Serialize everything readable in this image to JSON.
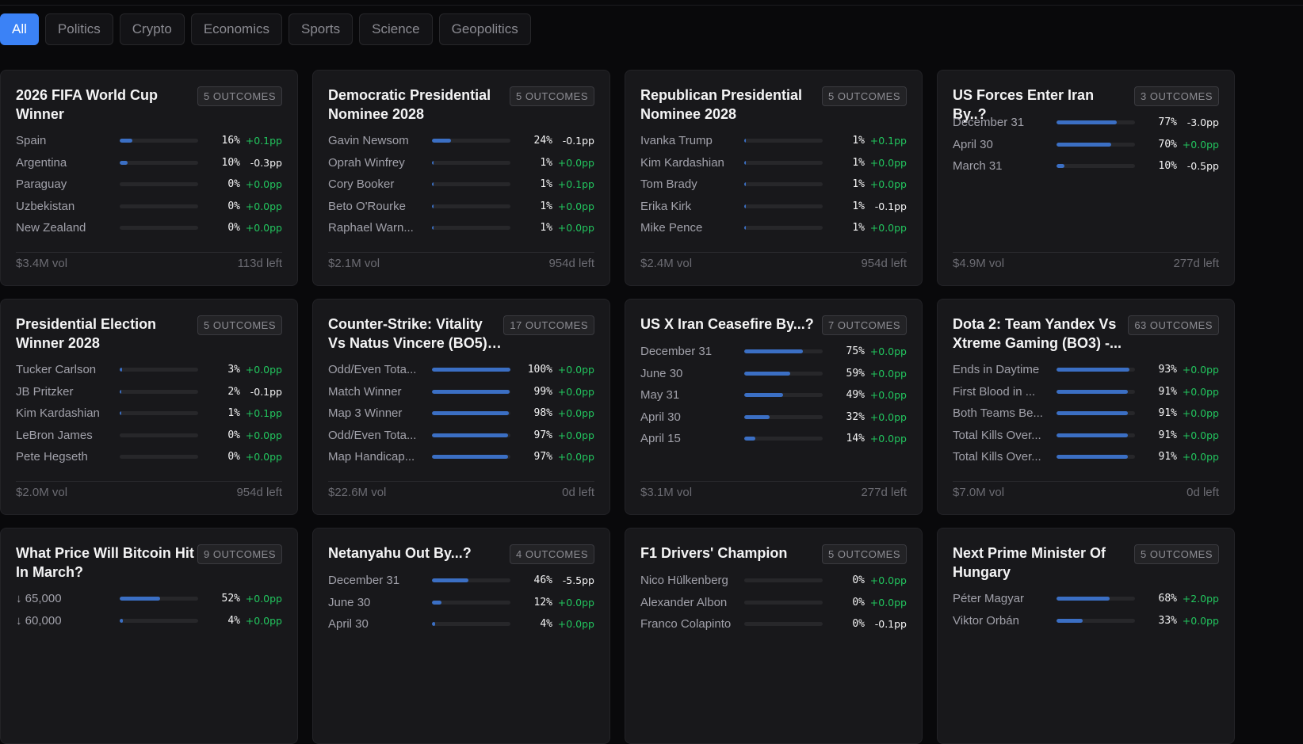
{
  "filters": [
    {
      "label": "All",
      "active": true
    },
    {
      "label": "Politics",
      "active": false
    },
    {
      "label": "Crypto",
      "active": false
    },
    {
      "label": "Economics",
      "active": false
    },
    {
      "label": "Sports",
      "active": false
    },
    {
      "label": "Science",
      "active": false
    },
    {
      "label": "Geopolitics",
      "active": false
    }
  ],
  "colors": {
    "accent": "#3b82f6",
    "bar": "#3b6fc4",
    "positive": "#22c55e",
    "negative": "#f4f4f5",
    "card_bg": "#18181b",
    "page_bg": "#09090b"
  },
  "markets": [
    {
      "title": "2026 FIFA World Cup Winner",
      "badge": "5 OUTCOMES",
      "volume": "$3.4M vol",
      "time_left": "113d left",
      "outcomes": [
        {
          "name": "Spain",
          "pct": 16,
          "pct_label": "16%",
          "delta": "+0.1pp"
        },
        {
          "name": "Argentina",
          "pct": 10,
          "pct_label": "10%",
          "delta": "-0.3pp"
        },
        {
          "name": "Paraguay",
          "pct": 0,
          "pct_label": "0%",
          "delta": "+0.0pp"
        },
        {
          "name": "Uzbekistan",
          "pct": 0,
          "pct_label": "0%",
          "delta": "+0.0pp"
        },
        {
          "name": "New Zealand",
          "pct": 0,
          "pct_label": "0%",
          "delta": "+0.0pp"
        }
      ]
    },
    {
      "title": "Democratic Presidential Nominee 2028",
      "badge": "5 OUTCOMES",
      "volume": "$2.1M vol",
      "time_left": "954d left",
      "outcomes": [
        {
          "name": "Gavin Newsom",
          "pct": 24,
          "pct_label": "24%",
          "delta": "-0.1pp"
        },
        {
          "name": "Oprah Winfrey",
          "pct": 1,
          "pct_label": "1%",
          "delta": "+0.0pp"
        },
        {
          "name": "Cory Booker",
          "pct": 1,
          "pct_label": "1%",
          "delta": "+0.1pp"
        },
        {
          "name": "Beto O'Rourke",
          "pct": 1,
          "pct_label": "1%",
          "delta": "+0.0pp"
        },
        {
          "name": "Raphael Warn...",
          "pct": 1,
          "pct_label": "1%",
          "delta": "+0.0pp"
        }
      ]
    },
    {
      "title": "Republican Presidential Nominee 2028",
      "badge": "5 OUTCOMES",
      "volume": "$2.4M vol",
      "time_left": "954d left",
      "outcomes": [
        {
          "name": "Ivanka Trump",
          "pct": 1,
          "pct_label": "1%",
          "delta": "+0.1pp"
        },
        {
          "name": "Kim Kardashian",
          "pct": 1,
          "pct_label": "1%",
          "delta": "+0.0pp"
        },
        {
          "name": "Tom Brady",
          "pct": 1,
          "pct_label": "1%",
          "delta": "+0.0pp"
        },
        {
          "name": "Erika Kirk",
          "pct": 1,
          "pct_label": "1%",
          "delta": "-0.1pp"
        },
        {
          "name": "Mike Pence",
          "pct": 1,
          "pct_label": "1%",
          "delta": "+0.0pp"
        }
      ]
    },
    {
      "title": "US Forces Enter Iran By..?",
      "badge": "3 OUTCOMES",
      "volume": "$4.9M vol",
      "time_left": "277d left",
      "single_line": true,
      "outcomes": [
        {
          "name": "December 31",
          "pct": 77,
          "pct_label": "77%",
          "delta": "-3.0pp"
        },
        {
          "name": "April 30",
          "pct": 70,
          "pct_label": "70%",
          "delta": "+0.0pp"
        },
        {
          "name": "March 31",
          "pct": 10,
          "pct_label": "10%",
          "delta": "-0.5pp"
        }
      ]
    },
    {
      "title": "Presidential Election Winner 2028",
      "badge": "5 OUTCOMES",
      "volume": "$2.0M vol",
      "time_left": "954d left",
      "outcomes": [
        {
          "name": "Tucker Carlson",
          "pct": 3,
          "pct_label": "3%",
          "delta": "+0.0pp"
        },
        {
          "name": "JB Pritzker",
          "pct": 2,
          "pct_label": "2%",
          "delta": "-0.1pp"
        },
        {
          "name": "Kim Kardashian",
          "pct": 1,
          "pct_label": "1%",
          "delta": "+0.1pp"
        },
        {
          "name": "LeBron James",
          "pct": 0,
          "pct_label": "0%",
          "delta": "+0.0pp"
        },
        {
          "name": "Pete Hegseth",
          "pct": 0,
          "pct_label": "0%",
          "delta": "+0.0pp"
        }
      ]
    },
    {
      "title": "Counter-Strike: Vitality Vs Natus Vincere (BO5) -...",
      "badge": "17 OUTCOMES",
      "volume": "$22.6M vol",
      "time_left": "0d left",
      "outcomes": [
        {
          "name": "Odd/Even Tota...",
          "pct": 100,
          "pct_label": "100%",
          "delta": "+0.0pp"
        },
        {
          "name": "Match Winner",
          "pct": 99,
          "pct_label": "99%",
          "delta": "+0.0pp"
        },
        {
          "name": "Map 3 Winner",
          "pct": 98,
          "pct_label": "98%",
          "delta": "+0.0pp"
        },
        {
          "name": "Odd/Even Tota...",
          "pct": 97,
          "pct_label": "97%",
          "delta": "+0.0pp"
        },
        {
          "name": "Map Handicap...",
          "pct": 97,
          "pct_label": "97%",
          "delta": "+0.0pp"
        }
      ]
    },
    {
      "title": "US X Iran Ceasefire By...?",
      "badge": "7 OUTCOMES",
      "volume": "$3.1M vol",
      "time_left": "277d left",
      "single_line": true,
      "outcomes": [
        {
          "name": "December 31",
          "pct": 75,
          "pct_label": "75%",
          "delta": "+0.0pp"
        },
        {
          "name": "June 30",
          "pct": 59,
          "pct_label": "59%",
          "delta": "+0.0pp"
        },
        {
          "name": "May 31",
          "pct": 49,
          "pct_label": "49%",
          "delta": "+0.0pp"
        },
        {
          "name": "April 30",
          "pct": 32,
          "pct_label": "32%",
          "delta": "+0.0pp"
        },
        {
          "name": "April 15",
          "pct": 14,
          "pct_label": "14%",
          "delta": "+0.0pp"
        }
      ]
    },
    {
      "title": "Dota 2: Team Yandex Vs Xtreme Gaming (BO3) -...",
      "badge": "63 OUTCOMES",
      "volume": "$7.0M vol",
      "time_left": "0d left",
      "outcomes": [
        {
          "name": "Ends in Daytime",
          "pct": 93,
          "pct_label": "93%",
          "delta": "+0.0pp"
        },
        {
          "name": "First Blood in ...",
          "pct": 91,
          "pct_label": "91%",
          "delta": "+0.0pp"
        },
        {
          "name": "Both Teams Be...",
          "pct": 91,
          "pct_label": "91%",
          "delta": "+0.0pp"
        },
        {
          "name": "Total Kills Over...",
          "pct": 91,
          "pct_label": "91%",
          "delta": "+0.0pp"
        },
        {
          "name": "Total Kills Over...",
          "pct": 91,
          "pct_label": "91%",
          "delta": "+0.0pp"
        }
      ]
    },
    {
      "title": "What Price Will Bitcoin Hit In March?",
      "badge": "9 OUTCOMES",
      "outcomes": [
        {
          "name": "↓ 65,000",
          "pct": 52,
          "pct_label": "52%",
          "delta": "+0.0pp"
        },
        {
          "name": "↓ 60,000",
          "pct": 4,
          "pct_label": "4%",
          "delta": "+0.0pp"
        }
      ]
    },
    {
      "title": "Netanyahu Out By...?",
      "badge": "4 OUTCOMES",
      "single_line": true,
      "outcomes": [
        {
          "name": "December 31",
          "pct": 46,
          "pct_label": "46%",
          "delta": "-5.5pp"
        },
        {
          "name": "June 30",
          "pct": 12,
          "pct_label": "12%",
          "delta": "+0.0pp"
        },
        {
          "name": "April 30",
          "pct": 4,
          "pct_label": "4%",
          "delta": "+0.0pp"
        }
      ]
    },
    {
      "title": "F1 Drivers' Champion",
      "badge": "5 OUTCOMES",
      "single_line": true,
      "outcomes": [
        {
          "name": "Nico Hülkenberg",
          "pct": 0,
          "pct_label": "0%",
          "delta": "+0.0pp"
        },
        {
          "name": "Alexander Albon",
          "pct": 0,
          "pct_label": "0%",
          "delta": "+0.0pp"
        },
        {
          "name": "Franco Colapinto",
          "pct": 0,
          "pct_label": "0%",
          "delta": "-0.1pp"
        }
      ]
    },
    {
      "title": "Next Prime Minister Of Hungary",
      "badge": "5 OUTCOMES",
      "outcomes": [
        {
          "name": "Péter Magyar",
          "pct": 68,
          "pct_label": "68%",
          "delta": "+2.0pp"
        },
        {
          "name": "Viktor Orbán",
          "pct": 33,
          "pct_label": "33%",
          "delta": "+0.0pp"
        }
      ]
    }
  ]
}
